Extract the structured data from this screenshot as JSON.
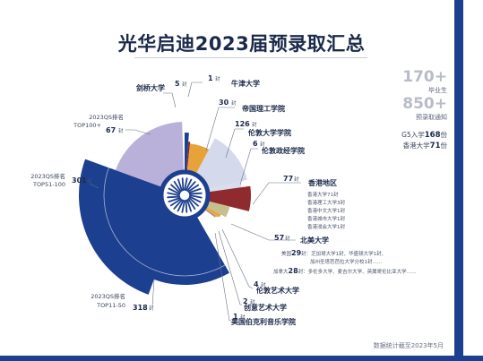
{
  "title": "光华启迪2023届预录取汇总",
  "summary": {
    "graduates_value": "170+",
    "graduates_label": "毕业生",
    "offers_value": "850+",
    "offers_label": "预录取通知",
    "g5_line_prefix": "G5入学",
    "g5_count": "168",
    "g5_line_suffix": "份",
    "hk_line_prefix": "香港大学",
    "hk_count": "71",
    "hk_line_suffix": "份"
  },
  "footnote": "数据统计截至2023年5月",
  "unit": "封",
  "colors": {
    "navy": "#1d3f8f",
    "blue": "#2f5bb3",
    "lavender": "#b3a9d6",
    "light_lavender": "#cfd6ea",
    "orange": "#e8a23a",
    "dark_red": "#8f2b2f",
    "olive": "#c5c08e",
    "gray": "#8b8f99",
    "hub_ring": "#1d3f8f"
  },
  "chart_data": {
    "type": "pie",
    "total_unit": "封",
    "rank_groups": [
      {
        "label_line1": "2023QS排名",
        "label_line2": "TOP100+",
        "value": 67
      },
      {
        "label_line1": "2023QS排名",
        "label_line2": "TOP51-100",
        "value": 301
      },
      {
        "label_line1": "2023QS排名",
        "label_line2": "TOP11-50",
        "value": 318
      }
    ],
    "schools": [
      {
        "name": "剑桥大学",
        "value": 5
      },
      {
        "name": "牛津大学",
        "value": 1
      },
      {
        "name": "帝国理工学院",
        "value": 30
      },
      {
        "name": "伦敦大学学院",
        "value": 126
      },
      {
        "name": "伦敦政经学院",
        "value": 6
      },
      {
        "name": "香港地区",
        "value": 77,
        "details": [
          "香港大学71封",
          "香港理工大学3封",
          "香港中文大学1封",
          "香港城市大学1封",
          "香港浸会大学1封"
        ]
      },
      {
        "name": "北美大学",
        "value": 57,
        "details_lines": [
          "美国29封：芝加哥大学1封、华盛顿大学1封、",
          "加州圣塔芭芭拉大学分校1封……",
          "加拿大28封：多伦多大学、麦吉尔大学、英属哥伦比亚大学……"
        ]
      },
      {
        "name": "伦敦艺术大学",
        "value": 4
      },
      {
        "name": "创意艺术大学",
        "value": 2
      },
      {
        "name": "美国伯克利音乐学院",
        "value": 1
      }
    ],
    "details_na": {
      "us_label": "美国",
      "us_count": "29",
      "us_rest": "封：芝加哥大学1封、华盛顿大学1封、",
      "us_line2": "加州圣塔芭芭拉大学分校1封……",
      "ca_label": "加拿大",
      "ca_count": "28",
      "ca_rest": "封：多伦多大学、麦吉尔大学、英属哥伦比亚大学……"
    }
  }
}
